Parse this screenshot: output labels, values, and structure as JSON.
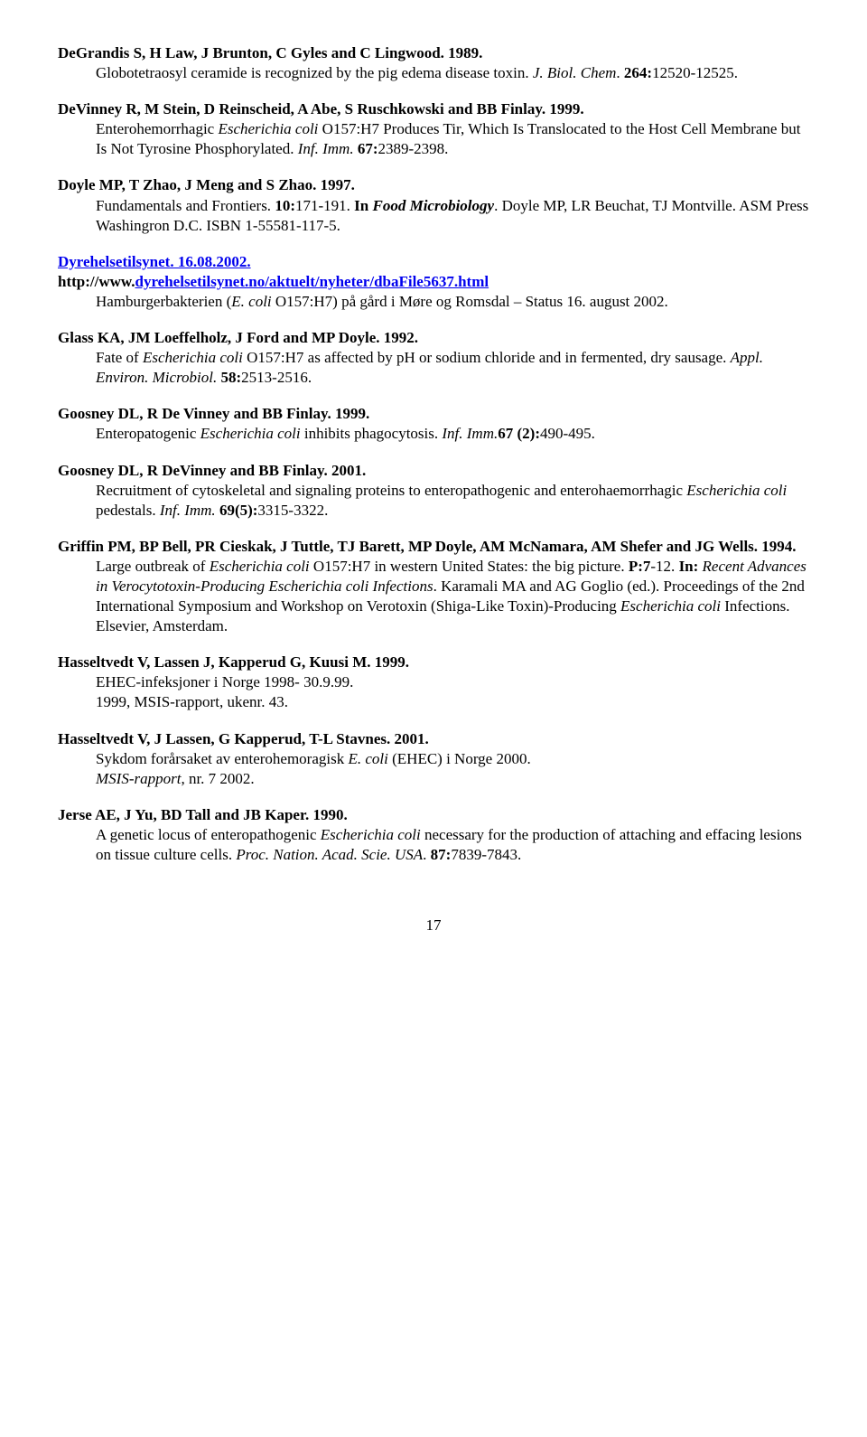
{
  "refs": [
    {
      "heading_plain": "DeGrandis S, H Law, J Brunton, C Gyles and C Lingwood. 1989.",
      "body_parts": [
        {
          "t": "Globotetraosyl ceramide is recognized by the pig edema disease toxin. "
        },
        {
          "t": "J. Biol. Chem",
          "cls": "italic"
        },
        {
          "t": ". "
        },
        {
          "t": "264:",
          "cls": "bold"
        },
        {
          "t": "12520-12525."
        }
      ]
    },
    {
      "heading_plain": "DeVinney R, M Stein, D Reinscheid, A Abe, S Ruschkowski and BB Finlay. 1999.",
      "body_parts": [
        {
          "t": "Enterohemorrhagic "
        },
        {
          "t": "Escherichia coli",
          "cls": "italic"
        },
        {
          "t": " O157:H7 Produces Tir, Which Is Translocated to the Host Cell Membrane but Is Not Tyrosine Phosphorylated. "
        },
        {
          "t": "Inf. Imm.",
          "cls": "italic"
        },
        {
          "t": " "
        },
        {
          "t": "67:",
          "cls": "bold"
        },
        {
          "t": "2389-2398."
        }
      ]
    },
    {
      "heading_plain": "Doyle MP, T Zhao, J Meng and S Zhao. 1997.",
      "body_parts": [
        {
          "t": "Fundamentals and Frontiers. "
        },
        {
          "t": "10:",
          "cls": "bold"
        },
        {
          "t": "171-191. "
        },
        {
          "t": "In ",
          "cls": "bold"
        },
        {
          "t": "Food Microbiology",
          "cls": "bolditalic"
        },
        {
          "t": ". Doyle MP, LR Beuchat, TJ Montville. ASM Press Washingron D.C. ISBN 1-55581-117-5."
        }
      ]
    },
    {
      "heading_link": "Dyrehelsetilsynet. 16.08.2002.",
      "url_prefix": "http://www.",
      "url_link": "dyrehelsetilsynet.no/aktuelt/nyheter/dbaFile5637.html",
      "body_parts": [
        {
          "t": "Hamburgerbakterien ("
        },
        {
          "t": "E. coli",
          "cls": "italic"
        },
        {
          "t": " O157:H7) på gård i Møre og Romsdal – Status 16. august 2002."
        }
      ]
    },
    {
      "heading_plain": "Glass KA, JM Loeffelholz, J Ford and MP Doyle. 1992.",
      "body_parts": [
        {
          "t": "Fate of "
        },
        {
          "t": "Escherichia coli",
          "cls": "italic"
        },
        {
          "t": " O157:H7 as affected by pH or sodium chloride and in fermented, dry sausage. "
        },
        {
          "t": "Appl. Environ. Microbiol.",
          "cls": "italic"
        },
        {
          "t": " "
        },
        {
          "t": "58:",
          "cls": "bold"
        },
        {
          "t": "2513-2516."
        }
      ]
    },
    {
      "heading_plain": "Goosney DL, R De Vinney and BB Finlay. 1999.",
      "body_parts": [
        {
          "t": "Enteropatogenic "
        },
        {
          "t": "Escherichia coli",
          "cls": "italic"
        },
        {
          "t": " inhibits phagocytosis. "
        },
        {
          "t": "Inf. Imm.",
          "cls": "italic"
        },
        {
          "t": "67 (2):",
          "cls": "bold"
        },
        {
          "t": "490-495."
        }
      ]
    },
    {
      "heading_plain": "Goosney DL, R DeVinney and BB Finlay. 2001.",
      "body_parts": [
        {
          "t": "Recruitment of cytoskeletal and signaling proteins to enteropathogenic and enterohaemorrhagic "
        },
        {
          "t": "Escherichia coli",
          "cls": "italic"
        },
        {
          "t": " pedestals. "
        },
        {
          "t": "Inf. Imm.",
          "cls": "italic"
        },
        {
          "t": " "
        },
        {
          "t": "69(5):",
          "cls": "bold"
        },
        {
          "t": "3315-3322."
        }
      ]
    },
    {
      "heading_plain": "Griffin PM, BP Bell, PR Cieskak, J Tuttle, TJ Barett, MP Doyle, AM McNamara, AM Shefer and JG Wells. 1994.",
      "body_parts": [
        {
          "t": "Large outbreak of "
        },
        {
          "t": "Escherichia coli",
          "cls": "italic"
        },
        {
          "t": " O157:H7 in western United States: the big picture. "
        },
        {
          "t": "P:7",
          "cls": "bold"
        },
        {
          "t": "-12. "
        },
        {
          "t": "In: ",
          "cls": "bold"
        },
        {
          "t": "Recent Advances in Verocytotoxin-Producing Escherichia coli Infections",
          "cls": "italic"
        },
        {
          "t": ". Karamali MA and AG Goglio (ed.). Proceedings of the 2nd International Symposium and Workshop on Verotoxin (Shiga-Like Toxin)-Producing "
        },
        {
          "t": "Escherichia coli",
          "cls": "italic"
        },
        {
          "t": " Infections. Elsevier, Amsterdam."
        }
      ]
    },
    {
      "heading_plain": "Hasseltvedt V, Lassen J, Kapperud G, Kuusi M. 1999.",
      "body_parts": [
        {
          "t": "EHEC-infeksjoner i Norge 1998- 30.9.99."
        },
        {
          "br": true
        },
        {
          "t": "1999, MSIS-rapport, ukenr. 43."
        }
      ]
    },
    {
      "heading_plain": "Hasseltvedt V, J Lassen, G Kapperud, T-L Stavnes. 2001.",
      "body_parts": [
        {
          "t": "Sykdom forårsaket av enterohemoragisk "
        },
        {
          "t": "E. coli",
          "cls": "italic"
        },
        {
          "t": " (EHEC) i Norge 2000."
        },
        {
          "br": true
        },
        {
          "t": "MSIS-rapport",
          "cls": "italic"
        },
        {
          "t": ", nr. 7 2002."
        }
      ]
    },
    {
      "heading_plain": "Jerse AE, J Yu, BD Tall and JB Kaper. 1990.",
      "body_parts": [
        {
          "t": "A genetic locus of enteropathogenic "
        },
        {
          "t": "Escherichia coli",
          "cls": "italic"
        },
        {
          "t": " necessary for the production of attaching and effacing lesions on tissue culture cells. "
        },
        {
          "t": "Proc. Nation. Acad. Scie. USA",
          "cls": "italic"
        },
        {
          "t": ". "
        },
        {
          "t": "87:",
          "cls": "bold"
        },
        {
          "t": "7839-7843."
        }
      ]
    }
  ],
  "page_number": "17"
}
